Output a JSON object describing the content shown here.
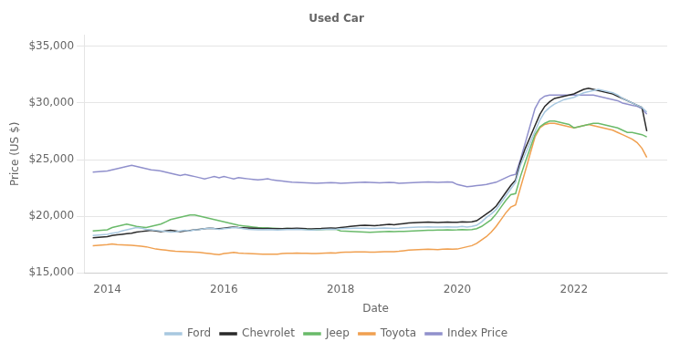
{
  "chart_data": {
    "type": "line",
    "title": "Used Car",
    "xlabel": "Date",
    "ylabel": "Price (US $)",
    "xlim": [
      2013.6,
      2023.6
    ],
    "xticks": [
      2014,
      2016,
      2018,
      2020,
      2022
    ],
    "ylim": [
      15000,
      36000
    ],
    "yticks": [
      {
        "value": 15000,
        "label": "$15,000"
      },
      {
        "value": 20000,
        "label": "$20,000"
      },
      {
        "value": 25000,
        "label": "$25,000"
      },
      {
        "value": 30000,
        "label": "$30,000"
      },
      {
        "value": 35000,
        "label": "$35,000"
      }
    ],
    "grid": "y",
    "legend": "bottom",
    "x": [
      2013.75,
      2014.0,
      2014.083,
      2014.167,
      2014.25,
      2014.333,
      2014.417,
      2014.5,
      2014.583,
      2014.667,
      2014.75,
      2014.833,
      2014.917,
      2015.0,
      2015.083,
      2015.167,
      2015.25,
      2015.333,
      2015.417,
      2015.5,
      2015.583,
      2015.667,
      2015.75,
      2015.833,
      2015.917,
      2016.0,
      2016.083,
      2016.167,
      2016.25,
      2016.333,
      2016.417,
      2016.5,
      2016.583,
      2016.667,
      2016.75,
      2016.833,
      2016.917,
      2017.0,
      2017.083,
      2017.167,
      2017.25,
      2017.333,
      2017.417,
      2017.5,
      2017.583,
      2017.667,
      2017.75,
      2017.833,
      2017.917,
      2018.0,
      2018.083,
      2018.167,
      2018.25,
      2018.333,
      2018.417,
      2018.5,
      2018.583,
      2018.667,
      2018.75,
      2018.833,
      2018.917,
      2019.0,
      2019.083,
      2019.167,
      2019.25,
      2019.333,
      2019.417,
      2019.5,
      2019.583,
      2019.667,
      2019.75,
      2019.833,
      2019.917,
      2020.0,
      2020.083,
      2020.167,
      2020.25,
      2020.333,
      2020.417,
      2020.5,
      2020.583,
      2020.667,
      2020.75,
      2020.833,
      2020.917,
      2021.0,
      2021.083,
      2021.167,
      2021.25,
      2021.333,
      2021.417,
      2021.5,
      2021.583,
      2021.667,
      2021.75,
      2021.833,
      2021.917,
      2022.0,
      2022.083,
      2022.167,
      2022.25,
      2022.333,
      2022.417,
      2022.5,
      2022.583,
      2022.667,
      2022.75,
      2022.833,
      2022.917,
      2023.0,
      2023.083,
      2023.167,
      2023.25
    ],
    "series": [
      {
        "name": "Ford",
        "color": "#a8c8e0",
        "values": [
          18300,
          18400,
          18500,
          18550,
          18700,
          18800,
          18900,
          19000,
          18950,
          18850,
          18800,
          18750,
          18700,
          18650,
          18600,
          18620,
          18700,
          18750,
          18700,
          18800,
          18820,
          18900,
          18950,
          18900,
          18850,
          18900,
          18950,
          19000,
          18980,
          18900,
          18850,
          18830,
          18810,
          18800,
          18820,
          18800,
          18780,
          18800,
          18820,
          18830,
          18850,
          18830,
          18800,
          18780,
          18800,
          18820,
          18850,
          18870,
          18850,
          18900,
          18920,
          18930,
          18950,
          18950,
          18950,
          18930,
          18920,
          18940,
          18960,
          18950,
          18930,
          18950,
          18980,
          19000,
          19020,
          19040,
          19050,
          19060,
          19050,
          19040,
          19050,
          19060,
          19050,
          19050,
          19100,
          19050,
          19100,
          19200,
          19500,
          19900,
          20200,
          20600,
          21200,
          21800,
          22400,
          23000,
          24500,
          25500,
          26500,
          27500,
          28500,
          29200,
          29600,
          29900,
          30100,
          30300,
          30400,
          30500,
          30700,
          30900,
          31000,
          31100,
          31200,
          31100,
          31000,
          30900,
          30700,
          30400,
          30200,
          30000,
          29800,
          29600,
          29200
        ]
      },
      {
        "name": "Chevrolet",
        "color": "#2a2a2a",
        "values": [
          18100,
          18200,
          18300,
          18350,
          18400,
          18450,
          18500,
          18600,
          18650,
          18700,
          18750,
          18700,
          18650,
          18700,
          18750,
          18700,
          18650,
          18700,
          18750,
          18800,
          18850,
          18900,
          18950,
          18920,
          18900,
          18950,
          19000,
          19050,
          19000,
          18980,
          18960,
          18940,
          18920,
          18900,
          18920,
          18910,
          18900,
          18900,
          18920,
          18930,
          18950,
          18930,
          18900,
          18880,
          18900,
          18920,
          18950,
          18970,
          18950,
          19000,
          19050,
          19100,
          19150,
          19180,
          19200,
          19180,
          19160,
          19200,
          19250,
          19280,
          19250,
          19300,
          19350,
          19400,
          19420,
          19440,
          19460,
          19480,
          19460,
          19440,
          19460,
          19480,
          19460,
          19460,
          19500,
          19480,
          19500,
          19600,
          19900,
          20200,
          20500,
          20900,
          21500,
          22100,
          22700,
          23200,
          24800,
          26000,
          27000,
          28000,
          29000,
          29700,
          30100,
          30400,
          30500,
          30600,
          30700,
          30800,
          31000,
          31200,
          31300,
          31200,
          31100,
          31000,
          30900,
          30800,
          30600,
          30400,
          30200,
          30000,
          29800,
          29600,
          27500
        ]
      },
      {
        "name": "Jeep",
        "color": "#6aba6a",
        "values": [
          18700,
          18800,
          19000,
          19100,
          19200,
          19300,
          19200,
          19100,
          19050,
          19000,
          19100,
          19200,
          19300,
          19500,
          19700,
          19800,
          19900,
          20000,
          20100,
          20100,
          20000,
          19900,
          19800,
          19700,
          19600,
          19500,
          19400,
          19300,
          19200,
          19150,
          19100,
          19050,
          19000,
          18980,
          18960,
          18940,
          18920,
          18900,
          18920,
          18900,
          18880,
          18860,
          18840,
          18820,
          18800,
          18820,
          18840,
          18860,
          18850,
          18700,
          18680,
          18660,
          18640,
          18620,
          18600,
          18580,
          18600,
          18620,
          18640,
          18650,
          18640,
          18650,
          18660,
          18680,
          18700,
          18720,
          18740,
          18760,
          18770,
          18780,
          18790,
          18800,
          18790,
          18800,
          18820,
          18800,
          18820,
          18900,
          19100,
          19400,
          19700,
          20200,
          20800,
          21400,
          21900,
          22000,
          23500,
          24800,
          26000,
          27200,
          27900,
          28200,
          28400,
          28400,
          28300,
          28200,
          28100,
          27800,
          27900,
          28000,
          28100,
          28200,
          28200,
          28100,
          28000,
          27900,
          27800,
          27600,
          27400,
          27400,
          27300,
          27200,
          27000
        ]
      },
      {
        "name": "Toyota",
        "color": "#f0a050",
        "values": [
          17400,
          17500,
          17550,
          17500,
          17480,
          17460,
          17440,
          17400,
          17350,
          17300,
          17200,
          17100,
          17050,
          17000,
          16950,
          16900,
          16880,
          16860,
          16840,
          16820,
          16800,
          16750,
          16700,
          16650,
          16600,
          16700,
          16750,
          16800,
          16750,
          16720,
          16700,
          16680,
          16660,
          16640,
          16640,
          16640,
          16640,
          16700,
          16720,
          16730,
          16740,
          16730,
          16720,
          16710,
          16700,
          16720,
          16740,
          16760,
          16750,
          16800,
          16820,
          16830,
          16840,
          16840,
          16840,
          16830,
          16820,
          16840,
          16860,
          16870,
          16860,
          16900,
          16950,
          17000,
          17020,
          17040,
          17060,
          17080,
          17060,
          17040,
          17080,
          17100,
          17080,
          17100,
          17200,
          17300,
          17400,
          17600,
          17900,
          18200,
          18600,
          19100,
          19700,
          20300,
          20800,
          21000,
          22500,
          24000,
          25500,
          27000,
          27800,
          28100,
          28200,
          28200,
          28100,
          28000,
          27900,
          27800,
          27900,
          28000,
          28100,
          28000,
          27900,
          27800,
          27700,
          27600,
          27400,
          27200,
          27000,
          26800,
          26500,
          26000,
          25200
        ]
      },
      {
        "name": "Index Price",
        "color": "#9090cc",
        "values": [
          23900,
          24000,
          24100,
          24200,
          24300,
          24400,
          24500,
          24400,
          24300,
          24200,
          24100,
          24050,
          24000,
          23900,
          23800,
          23700,
          23600,
          23700,
          23600,
          23500,
          23400,
          23300,
          23400,
          23500,
          23400,
          23500,
          23400,
          23300,
          23400,
          23350,
          23300,
          23250,
          23200,
          23250,
          23300,
          23200,
          23150,
          23100,
          23050,
          23000,
          22980,
          22960,
          22940,
          22920,
          22900,
          22920,
          22940,
          22960,
          22940,
          22900,
          22920,
          22940,
          22960,
          22980,
          23000,
          22980,
          22960,
          22940,
          22960,
          22980,
          22960,
          22900,
          22920,
          22940,
          22960,
          22980,
          23000,
          23020,
          23000,
          22980,
          23000,
          23020,
          23000,
          22800,
          22700,
          22600,
          22650,
          22700,
          22750,
          22800,
          22900,
          23000,
          23200,
          23400,
          23600,
          23700,
          25000,
          26500,
          28000,
          29500,
          30300,
          30600,
          30700,
          30700,
          30700,
          30700,
          30700,
          30700,
          30700,
          30700,
          30700,
          30700,
          30600,
          30500,
          30400,
          30300,
          30200,
          30000,
          29900,
          29800,
          29700,
          29500,
          29000
        ]
      }
    ]
  }
}
